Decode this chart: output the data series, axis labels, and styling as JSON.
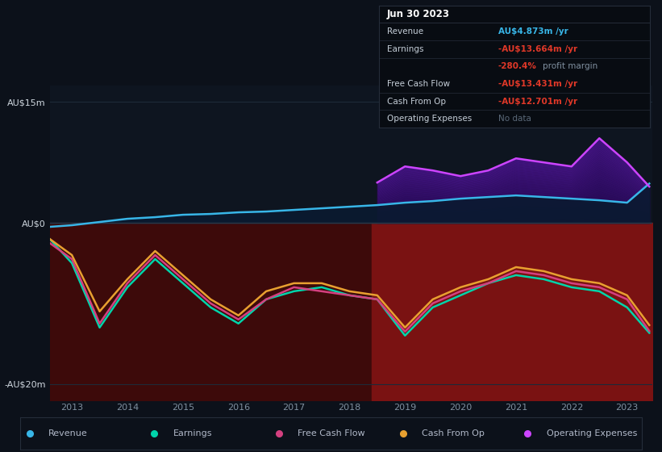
{
  "background_color": "#0c111a",
  "chart_bg": "#0e1520",
  "years": [
    2012.6,
    2013.0,
    2013.5,
    2014.0,
    2014.5,
    2015.0,
    2015.5,
    2016.0,
    2016.5,
    2017.0,
    2017.5,
    2018.0,
    2018.5,
    2019.0,
    2019.5,
    2020.0,
    2020.5,
    2021.0,
    2021.5,
    2022.0,
    2022.5,
    2023.0,
    2023.4
  ],
  "revenue": [
    -0.5,
    -0.3,
    0.1,
    0.5,
    0.7,
    1.0,
    1.1,
    1.3,
    1.4,
    1.6,
    1.8,
    2.0,
    2.2,
    2.5,
    2.7,
    3.0,
    3.2,
    3.4,
    3.2,
    3.0,
    2.8,
    2.5,
    4.873
  ],
  "earnings": [
    -2.0,
    -5.0,
    -13.0,
    -8.0,
    -4.5,
    -7.5,
    -10.5,
    -12.5,
    -9.5,
    -8.5,
    -8.0,
    -9.0,
    -9.5,
    -14.0,
    -10.5,
    -9.0,
    -7.5,
    -6.5,
    -7.0,
    -8.0,
    -8.5,
    -10.5,
    -13.664
  ],
  "free_cash_flow": [
    -2.5,
    -4.5,
    -12.5,
    -7.5,
    -4.0,
    -7.0,
    -10.0,
    -12.0,
    -9.5,
    -8.0,
    -8.5,
    -9.0,
    -9.5,
    -13.5,
    -10.0,
    -8.5,
    -7.5,
    -6.0,
    -6.5,
    -7.5,
    -8.0,
    -9.5,
    -13.431
  ],
  "cash_from_op": [
    -2.0,
    -4.0,
    -11.0,
    -7.0,
    -3.5,
    -6.5,
    -9.5,
    -11.5,
    -8.5,
    -7.5,
    -7.5,
    -8.5,
    -9.0,
    -13.0,
    -9.5,
    -8.0,
    -7.0,
    -5.5,
    -6.0,
    -7.0,
    -7.5,
    -9.0,
    -12.701
  ],
  "opex_x": [
    2018.5,
    2019.0,
    2019.5,
    2020.0,
    2020.5,
    2021.0,
    2021.5,
    2022.0,
    2022.5,
    2023.0,
    2023.4
  ],
  "opex_y": [
    5.0,
    7.0,
    6.5,
    5.8,
    6.5,
    8.0,
    7.5,
    7.0,
    10.5,
    7.5,
    4.5
  ],
  "ylim": [
    -22,
    17
  ],
  "yticks_vals": [
    -20,
    0,
    15
  ],
  "ytick_labels": [
    "-AU$20m",
    "AU$0",
    "AU$15m"
  ],
  "xticks": [
    2013,
    2014,
    2015,
    2016,
    2017,
    2018,
    2019,
    2020,
    2021,
    2022,
    2023
  ],
  "xmin": 2012.6,
  "xmax": 2023.45,
  "revenue_color": "#38b6e8",
  "earnings_color": "#00d4aa",
  "fcf_color": "#d44080",
  "cashop_color": "#e8a030",
  "opex_color": "#cc44ff",
  "red_left_color": "#5a0e0e",
  "red_right_color": "#8b1515",
  "highlight_split": 2018.4,
  "legend_items": [
    "Revenue",
    "Earnings",
    "Free Cash Flow",
    "Cash From Op",
    "Operating Expenses"
  ],
  "legend_colors": [
    "#38b6e8",
    "#00d4aa",
    "#d44080",
    "#e8a030",
    "#cc44ff"
  ],
  "tooltip_bg": "#080c12",
  "tooltip_border": "#252d3a"
}
